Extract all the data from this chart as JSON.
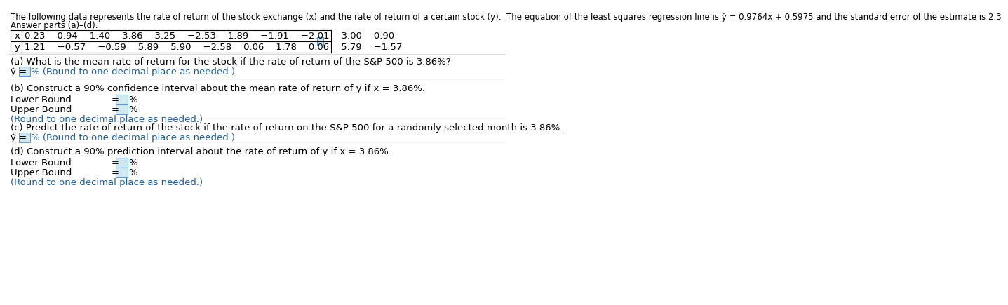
{
  "title_line1": "The following data represents the rate of return of the stock exchange (x) and the rate of return of a certain stock (y).  The equation of the least squares regression line is ŷ = 0.9764x + 0.5975 and the standard error of the estimate is 2.3",
  "title_line2": "Answer parts (a)–(d).",
  "x_label": "x",
  "y_label": "y",
  "x_values": "0.23    0.94    1.40    3.86    3.25    −2.53    1.89    −1.91    −2.01    3.00    0.90",
  "y_values": "1.21    −0.57    −0.59    5.89    5.90    −2.58    0.06    1.78    0.06    5.79    −1.57",
  "part_a_question": "(a) What is the mean rate of return for the stock if the rate of return of the S&P 500 is 3.86%?",
  "part_a_answer_label": "ŷ =",
  "part_a_answer_suffix": "% (Round to one decimal place as needed.)",
  "part_b_question": "(b) Construct a 90% confidence interval about the mean rate of return of y if x = 3.86%.",
  "part_b_lower_label": "Lower Bound",
  "part_b_upper_label": "Upper Bound",
  "part_b_equals": "=",
  "part_b_suffix": "%",
  "part_b_note": "(Round to one decimal place as needed.)",
  "part_c_question": "(c) Predict the rate of return of the stock if the rate of return on the S&P 500 for a randomly selected month is 3.86%.",
  "part_c_answer_label": "ŷ =",
  "part_c_answer_suffix": "% (Round to one decimal place as needed.)",
  "part_d_question": "(d) Construct a 90% prediction interval about the rate of return of y if x = 3.86%.",
  "part_d_lower_label": "Lower Bound",
  "part_d_upper_label": "Upper Bound",
  "part_d_equals": "=",
  "part_d_suffix": "%",
  "part_d_note": "(Round to one decimal place as needed.)",
  "bg_color": "#ffffff",
  "text_color": "#000000",
  "answer_box_color": "#d0e8f0",
  "answer_box_border": "#5b9bd5",
  "table_border_color": "#000000",
  "link_color": "#1f5c99",
  "font_size": 9.5,
  "small_font_size": 8.5
}
